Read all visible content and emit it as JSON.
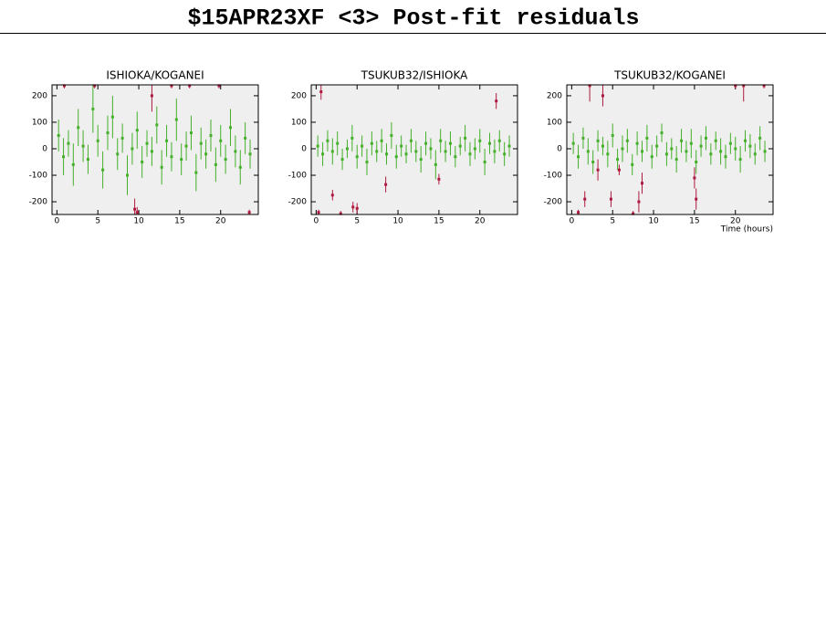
{
  "title": "$15APR23XF <3> Post-fit residuals",
  "chart_data": [
    {
      "type": "scatter",
      "title": "ISHIOKA/KOGANEI",
      "xlim": [
        -0.6,
        24.6
      ],
      "ylim": [
        -248,
        241
      ],
      "xticks": [
        0,
        5,
        10,
        15,
        20
      ],
      "yticks": [
        -200,
        -100,
        0,
        100,
        200
      ],
      "series": [
        {
          "color": "#44b02a",
          "x": [
            0.2,
            0.8,
            1.4,
            2.0,
            2.6,
            3.2,
            3.8,
            4.4,
            5.0,
            5.6,
            6.2,
            6.8,
            7.4,
            8.0,
            8.6,
            9.2,
            9.8,
            10.4,
            11.0,
            11.6,
            12.2,
            12.8,
            13.4,
            14.0,
            14.6,
            15.2,
            15.8,
            16.4,
            17.0,
            17.6,
            18.2,
            18.8,
            19.4,
            20.0,
            20.6,
            21.2,
            21.8,
            22.4,
            23.0,
            23.6
          ],
          "values": [
            50,
            -30,
            20,
            -60,
            80,
            10,
            -40,
            150,
            30,
            -80,
            60,
            120,
            -20,
            40,
            -100,
            0,
            70,
            -50,
            20,
            -10,
            90,
            -70,
            30,
            -30,
            110,
            -40,
            10,
            60,
            -90,
            20,
            -20,
            50,
            -60,
            30,
            -40,
            80,
            -10,
            -70,
            40,
            -20
          ],
          "errors": [
            60,
            70,
            50,
            80,
            70,
            60,
            55,
            90,
            60,
            70,
            65,
            80,
            60,
            55,
            75,
            60,
            70,
            60,
            50,
            55,
            70,
            65,
            60,
            55,
            80,
            60,
            55,
            65,
            70,
            60,
            55,
            60,
            65,
            60,
            55,
            70,
            60,
            65,
            60,
            55
          ]
        },
        {
          "color": "#b0193f",
          "x": [
            0.9,
            4.6,
            9.5,
            9.8,
            11.6,
            14.0,
            16.2,
            19.8,
            23.5
          ],
          "values": [
            238,
            238,
            -228,
            -240,
            200,
            238,
            238,
            238,
            -240
          ],
          "errors": [
            10,
            10,
            40,
            20,
            60,
            10,
            10,
            10,
            10
          ]
        }
      ]
    },
    {
      "type": "scatter",
      "title": "TSUKUB32/ISHIOKA",
      "xlim": [
        -0.6,
        24.6
      ],
      "ylim": [
        -248,
        241
      ],
      "xticks": [
        0,
        5,
        10,
        15,
        20
      ],
      "yticks": [
        -200,
        -100,
        0,
        100,
        200
      ],
      "series": [
        {
          "color": "#44b02a",
          "x": [
            0.2,
            0.8,
            1.4,
            2.0,
            2.6,
            3.2,
            3.8,
            4.4,
            5.0,
            5.6,
            6.2,
            6.8,
            7.4,
            8.0,
            8.6,
            9.2,
            9.8,
            10.4,
            11.0,
            11.6,
            12.2,
            12.8,
            13.4,
            14.0,
            14.6,
            15.2,
            15.8,
            16.4,
            17.0,
            17.6,
            18.2,
            18.8,
            19.4,
            20.0,
            20.6,
            21.2,
            21.8,
            22.4,
            23.0,
            23.6
          ],
          "values": [
            10,
            -20,
            30,
            -10,
            20,
            -40,
            0,
            40,
            -30,
            10,
            -50,
            20,
            -10,
            30,
            -20,
            50,
            -30,
            10,
            -20,
            30,
            -10,
            -40,
            20,
            0,
            -60,
            30,
            -10,
            20,
            -30,
            10,
            40,
            -20,
            0,
            30,
            -50,
            20,
            -10,
            30,
            -20,
            10
          ],
          "errors": [
            40,
            45,
            40,
            50,
            45,
            40,
            35,
            50,
            45,
            40,
            50,
            45,
            40,
            45,
            40,
            50,
            45,
            40,
            35,
            45,
            40,
            50,
            45,
            40,
            55,
            45,
            40,
            45,
            40,
            35,
            50,
            45,
            40,
            45,
            50,
            40,
            45,
            40,
            45,
            40
          ]
        },
        {
          "color": "#b0193f",
          "x": [
            0.3,
            0.6,
            2.0,
            3.0,
            4.5,
            5.0,
            8.5,
            15.0,
            22.0
          ],
          "values": [
            -240,
            215,
            -175,
            -245,
            -220,
            -225,
            -135,
            -115,
            180
          ],
          "errors": [
            10,
            30,
            20,
            10,
            20,
            20,
            30,
            20,
            30
          ]
        }
      ]
    },
    {
      "type": "scatter",
      "title": "TSUKUB32/KOGANEI",
      "x_label": "Time (hours)",
      "xlim": [
        -0.6,
        24.6
      ],
      "ylim": [
        -248,
        241
      ],
      "xticks": [
        0,
        5,
        10,
        15,
        20
      ],
      "yticks": [
        -200,
        -100,
        0,
        100,
        200
      ],
      "series": [
        {
          "color": "#44b02a",
          "x": [
            0.2,
            0.8,
            1.4,
            2.0,
            2.6,
            3.2,
            3.8,
            4.4,
            5.0,
            5.6,
            6.2,
            6.8,
            7.4,
            8.0,
            8.6,
            9.2,
            9.8,
            10.4,
            11.0,
            11.6,
            12.2,
            12.8,
            13.4,
            14.0,
            14.6,
            15.2,
            15.8,
            16.4,
            17.0,
            17.6,
            18.2,
            18.8,
            19.4,
            20.0,
            20.6,
            21.2,
            21.8,
            22.4,
            23.0,
            23.6
          ],
          "values": [
            20,
            -30,
            40,
            -10,
            -50,
            30,
            10,
            -20,
            50,
            -40,
            0,
            30,
            -60,
            20,
            -10,
            40,
            -30,
            10,
            60,
            -20,
            0,
            -40,
            30,
            -10,
            20,
            -50,
            10,
            40,
            -20,
            30,
            -10,
            -30,
            20,
            0,
            -40,
            30,
            10,
            -20,
            40,
            -10
          ],
          "errors": [
            40,
            45,
            40,
            50,
            45,
            40,
            35,
            50,
            45,
            40,
            50,
            45,
            40,
            45,
            40,
            50,
            45,
            40,
            35,
            45,
            40,
            50,
            45,
            40,
            55,
            45,
            40,
            45,
            40,
            35,
            50,
            45,
            40,
            45,
            50,
            40,
            45,
            40,
            45,
            40
          ]
        },
        {
          "color": "#b0193f",
          "x": [
            0.8,
            1.6,
            2.2,
            3.2,
            3.8,
            4.8,
            5.8,
            7.5,
            8.2,
            8.6,
            15.0,
            15.2,
            20.0,
            21.0,
            23.5
          ],
          "values": [
            -240,
            -190,
            238,
            -80,
            200,
            -190,
            -80,
            -245,
            -200,
            -130,
            -110,
            -190,
            238,
            238,
            238
          ],
          "errors": [
            10,
            30,
            60,
            40,
            40,
            30,
            20,
            10,
            40,
            40,
            40,
            40,
            10,
            60,
            10
          ]
        }
      ]
    }
  ]
}
